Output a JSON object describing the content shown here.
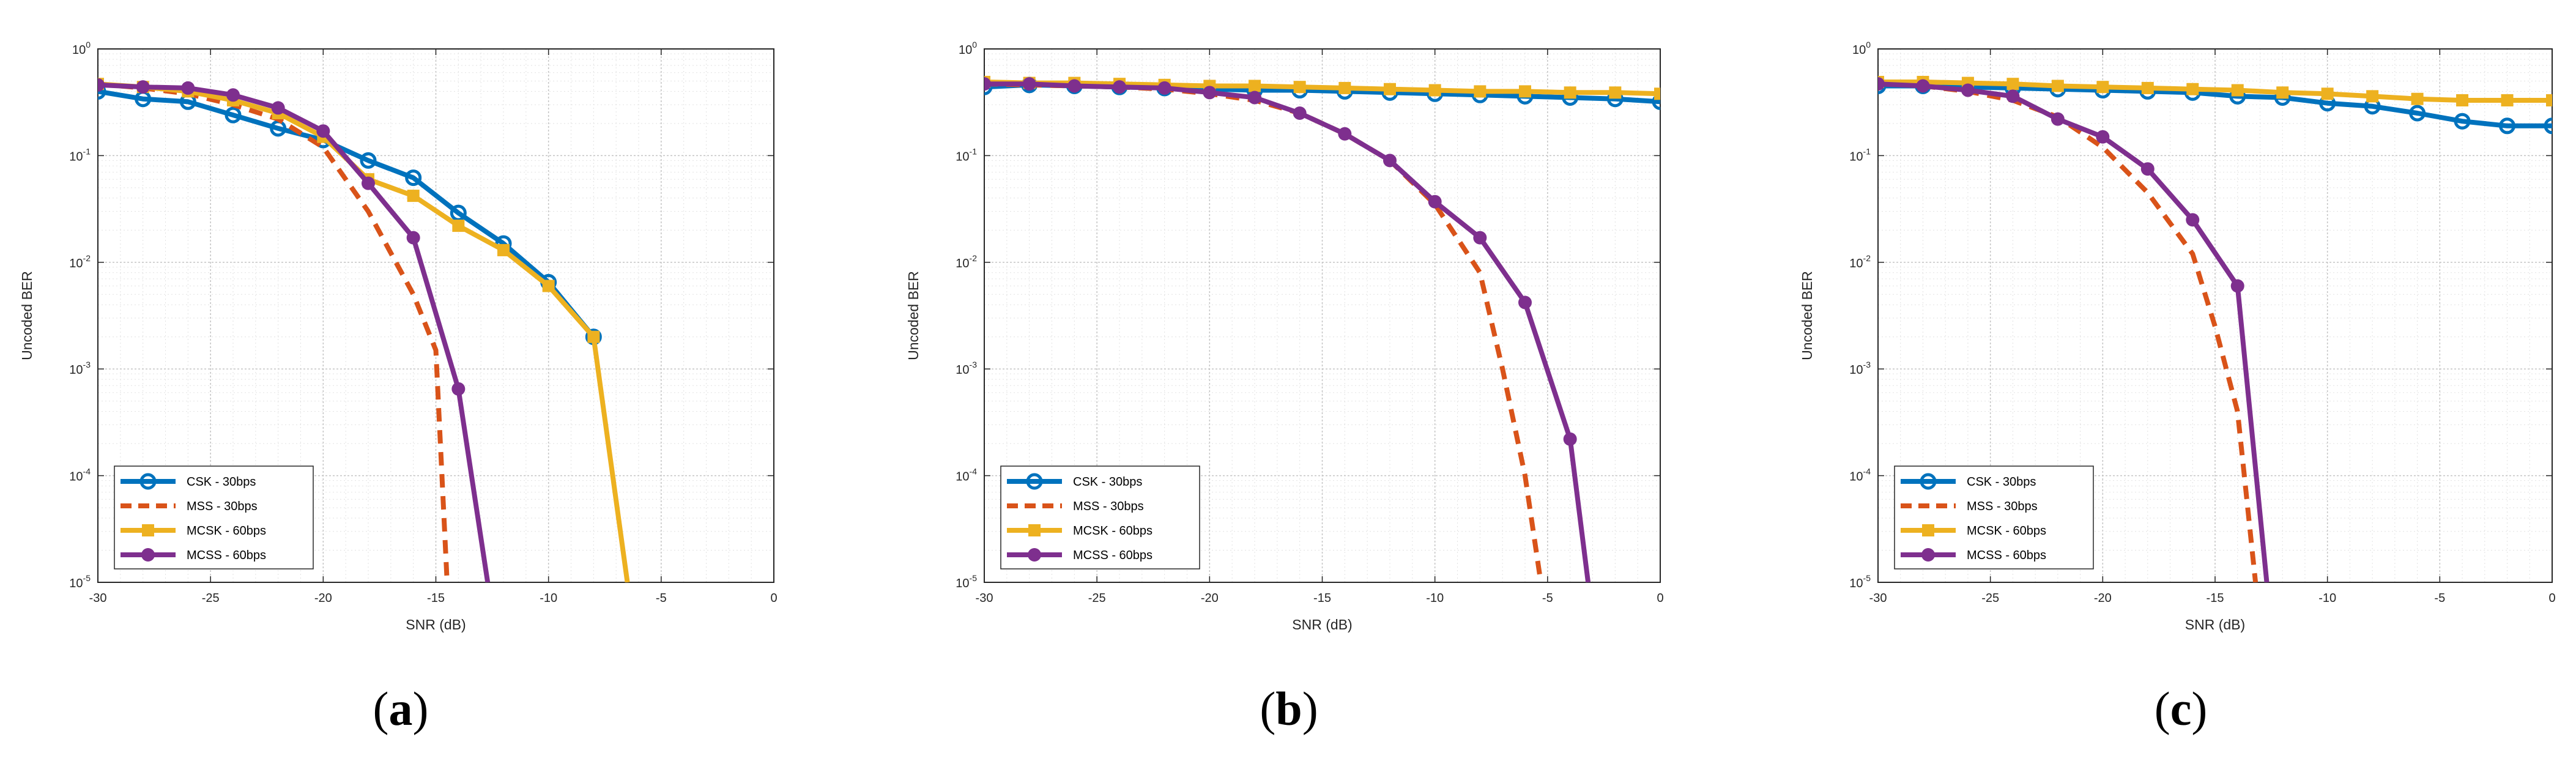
{
  "series_styles": [
    {
      "name": "CSK - 30bps",
      "color": "#0072BD",
      "dash": "solid",
      "marker": "circle"
    },
    {
      "name": "MSS - 30bps",
      "color": "#D95319",
      "dash": "dashed",
      "marker": "none"
    },
    {
      "name": "MCSK - 60bps",
      "color": "#EDB120",
      "dash": "solid",
      "marker": "square"
    },
    {
      "name": "MCSS - 60bps",
      "color": "#7E2F8E",
      "dash": "solid",
      "marker": "dot"
    }
  ],
  "chart_data": [
    {
      "type": "line",
      "panel_label": "a",
      "xlabel": "SNR (dB)",
      "ylabel": "Uncoded BER",
      "xlim": [
        -30,
        0
      ],
      "ylim": [
        1e-05,
        1
      ],
      "yscale": "log",
      "grid": true,
      "legend_position": "bottom-left",
      "xticks": [
        -30,
        -25,
        -20,
        -15,
        -10,
        -5,
        0
      ],
      "yticks_exp": [
        0,
        -1,
        -2,
        -3,
        -4,
        -5
      ],
      "series": [
        {
          "name": "CSK - 30bps",
          "x": [
            -30,
            -28,
            -26,
            -24,
            -22,
            -20,
            -18,
            -16,
            -14,
            -12,
            -10,
            -8
          ],
          "y": [
            0.4,
            0.34,
            0.32,
            0.24,
            0.18,
            0.14,
            0.09,
            0.062,
            0.029,
            0.015,
            0.0065,
            0.002
          ]
        },
        {
          "name": "MSS - 30bps",
          "x": [
            -30,
            -28,
            -26,
            -24,
            -22,
            -20,
            -18,
            -16,
            -15,
            -14.5
          ],
          "y": [
            0.47,
            0.43,
            0.38,
            0.3,
            0.22,
            0.12,
            0.03,
            0.005,
            0.0015,
            1e-05
          ]
        },
        {
          "name": "MCSK - 60bps",
          "x": [
            -30,
            -28,
            -26,
            -24,
            -22,
            -20,
            -18,
            -16,
            -14,
            -12,
            -10,
            -8,
            -6.5
          ],
          "y": [
            0.47,
            0.44,
            0.4,
            0.33,
            0.25,
            0.15,
            0.06,
            0.042,
            0.022,
            0.013,
            0.006,
            0.002,
            1e-05
          ]
        },
        {
          "name": "MCSS - 60bps",
          "x": [
            -30,
            -28,
            -26,
            -24,
            -22,
            -20,
            -18,
            -16,
            -14,
            -12.7
          ],
          "y": [
            0.46,
            0.44,
            0.43,
            0.37,
            0.28,
            0.17,
            0.055,
            0.017,
            0.00065,
            1e-05
          ]
        }
      ]
    },
    {
      "type": "line",
      "panel_label": "b",
      "xlabel": "SNR (dB)",
      "ylabel": "Uncoded BER",
      "xlim": [
        -30,
        0
      ],
      "ylim": [
        1e-05,
        1
      ],
      "yscale": "log",
      "grid": true,
      "legend_position": "bottom-left",
      "xticks": [
        -30,
        -25,
        -20,
        -15,
        -10,
        -5,
        0
      ],
      "yticks_exp": [
        0,
        -1,
        -2,
        -3,
        -4,
        -5
      ],
      "series": [
        {
          "name": "CSK - 30bps",
          "x": [
            -30,
            -28,
            -26,
            -24,
            -22,
            -20,
            -18,
            -16,
            -14,
            -12,
            -10,
            -8,
            -6,
            -4,
            -2,
            0
          ],
          "y": [
            0.44,
            0.46,
            0.45,
            0.44,
            0.43,
            0.42,
            0.41,
            0.41,
            0.4,
            0.39,
            0.38,
            0.37,
            0.36,
            0.35,
            0.34,
            0.32
          ]
        },
        {
          "name": "MSS - 30bps",
          "x": [
            -30,
            -28,
            -26,
            -24,
            -22,
            -20,
            -18,
            -16,
            -14,
            -12,
            -10,
            -8,
            -7,
            -6,
            -5.3
          ],
          "y": [
            0.47,
            0.46,
            0.45,
            0.44,
            0.42,
            0.38,
            0.33,
            0.25,
            0.16,
            0.09,
            0.035,
            0.008,
            0.001,
            0.0001,
            1e-05
          ]
        },
        {
          "name": "MCSK - 60bps",
          "x": [
            -30,
            -28,
            -26,
            -24,
            -22,
            -20,
            -18,
            -16,
            -14,
            -12,
            -10,
            -8,
            -6,
            -4,
            -2,
            0
          ],
          "y": [
            0.49,
            0.48,
            0.48,
            0.47,
            0.46,
            0.45,
            0.45,
            0.44,
            0.43,
            0.42,
            0.41,
            0.4,
            0.4,
            0.39,
            0.39,
            0.38
          ]
        },
        {
          "name": "MCSS - 60bps",
          "x": [
            -30,
            -28,
            -26,
            -24,
            -22,
            -20,
            -18,
            -16,
            -14,
            -12,
            -10,
            -8,
            -6,
            -4,
            -3.2
          ],
          "y": [
            0.47,
            0.47,
            0.45,
            0.44,
            0.43,
            0.39,
            0.35,
            0.25,
            0.16,
            0.09,
            0.037,
            0.017,
            0.0042,
            0.00022,
            1e-05
          ]
        }
      ]
    },
    {
      "type": "line",
      "panel_label": "c",
      "xlabel": "SNR (dB)",
      "ylabel": "Uncoded BER",
      "xlim": [
        -30,
        0
      ],
      "ylim": [
        1e-05,
        1
      ],
      "yscale": "log",
      "grid": true,
      "legend_position": "bottom-left",
      "xticks": [
        -30,
        -25,
        -20,
        -15,
        -10,
        -5,
        0
      ],
      "yticks_exp": [
        0,
        -1,
        -2,
        -3,
        -4,
        -5
      ],
      "series": [
        {
          "name": "CSK - 30bps",
          "x": [
            -30,
            -28,
            -26,
            -24,
            -22,
            -20,
            -18,
            -16,
            -14,
            -12,
            -10,
            -8,
            -6,
            -4,
            -2,
            0
          ],
          "y": [
            0.45,
            0.45,
            0.44,
            0.43,
            0.42,
            0.41,
            0.4,
            0.39,
            0.36,
            0.35,
            0.31,
            0.29,
            0.25,
            0.21,
            0.19,
            0.19
          ]
        },
        {
          "name": "MSS - 30bps",
          "x": [
            -30,
            -28,
            -26,
            -24,
            -22,
            -20,
            -18,
            -16,
            -15,
            -14,
            -13.7,
            -13.2
          ],
          "y": [
            0.48,
            0.45,
            0.4,
            0.33,
            0.23,
            0.12,
            0.045,
            0.012,
            0.0025,
            0.0004,
            0.0001,
            1e-05
          ]
        },
        {
          "name": "MCSK - 60bps",
          "x": [
            -30,
            -28,
            -26,
            -24,
            -22,
            -20,
            -18,
            -16,
            -14,
            -12,
            -10,
            -8,
            -6,
            -4,
            -2,
            0
          ],
          "y": [
            0.49,
            0.49,
            0.48,
            0.47,
            0.45,
            0.44,
            0.43,
            0.42,
            0.41,
            0.39,
            0.38,
            0.36,
            0.34,
            0.33,
            0.33,
            0.33
          ]
        },
        {
          "name": "MCSS - 60bps",
          "x": [
            -30,
            -28,
            -26,
            -24,
            -22,
            -20,
            -18,
            -16,
            -14,
            -12.7
          ],
          "y": [
            0.47,
            0.45,
            0.41,
            0.36,
            0.22,
            0.15,
            0.075,
            0.025,
            0.006,
            1e-05
          ]
        }
      ]
    }
  ]
}
